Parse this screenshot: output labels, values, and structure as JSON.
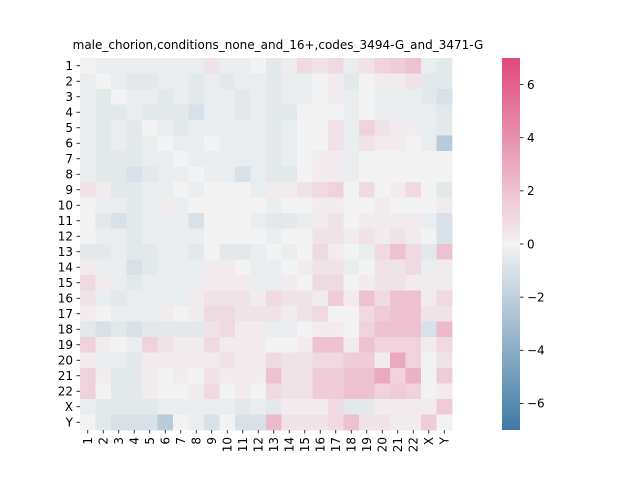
{
  "chart_data": {
    "type": "heatmap",
    "title": "male_chorion,conditions_none_and_16+,codes_3494-G_and_3471-G",
    "xlabel": "",
    "ylabel": "",
    "categories": [
      "1",
      "2",
      "3",
      "4",
      "5",
      "6",
      "7",
      "8",
      "9",
      "10",
      "11",
      "12",
      "13",
      "14",
      "15",
      "16",
      "17",
      "18",
      "19",
      "20",
      "21",
      "22",
      "X",
      "Y"
    ],
    "colorbar": {
      "min": -7,
      "max": 7,
      "ticks": [
        -6,
        -4,
        -2,
        0,
        2,
        4,
        6
      ],
      "tick_labels": [
        "−6",
        "−4",
        "−2",
        "0",
        "2",
        "4",
        "6"
      ],
      "low_color": "#3f7aa5",
      "mid_color": "#f2f2f2",
      "high_color": "#e0487a"
    },
    "values": [
      [
        0.0,
        -0.3,
        -0.3,
        -0.3,
        -0.3,
        -0.3,
        -0.3,
        -0.3,
        0.6,
        -0.3,
        -0.3,
        0.0,
        -0.6,
        0.3,
        1.0,
        0.6,
        1.0,
        -0.3,
        0.6,
        1.3,
        1.6,
        2.0,
        -0.3,
        -0.6
      ],
      [
        -0.3,
        0.0,
        -0.3,
        -0.6,
        -0.6,
        -0.3,
        -0.3,
        -0.6,
        -0.3,
        -0.6,
        -0.3,
        -0.3,
        -0.6,
        -0.3,
        -0.3,
        0.0,
        0.3,
        -0.6,
        0.0,
        0.3,
        0.3,
        0.6,
        -0.6,
        -0.6
      ],
      [
        -0.3,
        -0.6,
        0.0,
        -0.3,
        -0.3,
        -0.6,
        -0.3,
        -0.6,
        -0.3,
        -0.3,
        -0.6,
        -0.3,
        -0.6,
        -0.3,
        -0.3,
        0.0,
        0.3,
        -0.3,
        0.0,
        -0.3,
        -0.3,
        -0.3,
        -0.6,
        -1.0
      ],
      [
        -0.3,
        -0.6,
        -0.6,
        -0.3,
        -0.6,
        -0.6,
        -0.6,
        -1.0,
        -0.3,
        -0.3,
        -0.6,
        -0.3,
        -0.6,
        -0.6,
        0.0,
        0.0,
        0.0,
        -0.3,
        0.0,
        -0.3,
        -0.3,
        -0.3,
        -0.3,
        -0.6
      ],
      [
        -0.3,
        -0.6,
        -0.3,
        -0.6,
        0.0,
        -0.3,
        -0.6,
        -0.3,
        -0.3,
        -0.3,
        -0.3,
        -0.3,
        -0.6,
        -0.3,
        0.0,
        0.0,
        0.6,
        -0.3,
        1.3,
        0.6,
        0.3,
        0.3,
        -0.3,
        -0.6
      ],
      [
        -0.3,
        -0.6,
        -0.3,
        -0.6,
        -0.3,
        0.0,
        -0.3,
        -0.3,
        0.0,
        -0.3,
        -0.3,
        -0.3,
        -0.6,
        -0.3,
        0.0,
        0.0,
        0.6,
        -0.3,
        0.6,
        0.3,
        0.3,
        0.0,
        -0.3,
        -2.3
      ],
      [
        -0.3,
        -0.6,
        -0.6,
        -0.6,
        -0.3,
        -0.3,
        0.0,
        -0.3,
        -0.3,
        -0.3,
        -0.3,
        -0.3,
        -0.6,
        -0.3,
        0.0,
        0.3,
        0.3,
        -0.3,
        0.0,
        0.0,
        0.0,
        0.0,
        0.0,
        0.0
      ],
      [
        -0.3,
        -0.6,
        -0.6,
        -1.0,
        -0.6,
        -0.3,
        -0.3,
        0.0,
        -0.3,
        -0.3,
        -1.0,
        -0.3,
        -0.6,
        -0.6,
        0.0,
        0.3,
        0.3,
        -0.3,
        0.0,
        0.0,
        0.0,
        0.0,
        0.0,
        0.0
      ],
      [
        0.6,
        0.3,
        -0.6,
        -0.6,
        -0.3,
        -0.3,
        0.0,
        -0.3,
        0.0,
        0.0,
        0.0,
        -0.3,
        0.3,
        0.3,
        0.6,
        1.0,
        1.3,
        0.0,
        1.0,
        0.0,
        0.3,
        1.0,
        0.0,
        -0.6
      ],
      [
        0.0,
        -0.3,
        -0.3,
        -0.6,
        -0.3,
        0.3,
        -0.3,
        0.0,
        0.0,
        0.0,
        0.0,
        0.0,
        -0.3,
        0.0,
        0.0,
        0.3,
        0.3,
        0.0,
        0.0,
        0.3,
        0.0,
        0.0,
        0.0,
        0.3
      ],
      [
        0.0,
        -0.6,
        -1.0,
        -0.6,
        -0.3,
        -0.3,
        -0.3,
        -1.0,
        0.0,
        0.0,
        0.0,
        -0.3,
        -0.6,
        -0.6,
        -0.3,
        0.3,
        0.6,
        0.0,
        0.3,
        0.3,
        0.3,
        0.3,
        -0.3,
        -1.0
      ],
      [
        0.0,
        -0.3,
        -0.3,
        -0.6,
        -0.3,
        -0.3,
        -0.3,
        -0.3,
        0.0,
        0.0,
        0.0,
        0.0,
        -0.3,
        0.0,
        0.0,
        0.6,
        0.6,
        0.3,
        0.6,
        0.3,
        0.6,
        0.3,
        0.0,
        -1.0
      ],
      [
        -0.6,
        -0.6,
        -0.3,
        -0.6,
        -0.6,
        -0.3,
        -0.3,
        -0.6,
        0.0,
        -0.6,
        -0.6,
        -0.3,
        0.0,
        -0.3,
        0.0,
        1.0,
        0.3,
        0.0,
        -0.3,
        1.0,
        2.0,
        1.0,
        -0.6,
        2.0
      ],
      [
        0.3,
        -0.3,
        -0.3,
        -1.0,
        -0.6,
        -0.3,
        -0.3,
        -0.3,
        0.3,
        0.3,
        0.0,
        -0.3,
        -0.3,
        0.0,
        0.3,
        0.6,
        0.6,
        -0.3,
        0.0,
        0.6,
        0.6,
        1.0,
        -0.3,
        0.3
      ],
      [
        1.0,
        0.3,
        -0.3,
        -0.6,
        -0.3,
        -0.3,
        -0.3,
        -0.3,
        0.3,
        0.3,
        0.3,
        -0.3,
        -0.3,
        0.3,
        0.0,
        1.0,
        1.0,
        0.0,
        0.3,
        0.6,
        0.6,
        0.3,
        0.3,
        0.3
      ],
      [
        0.6,
        -0.3,
        -0.6,
        -0.3,
        -0.3,
        -0.3,
        -0.3,
        0.3,
        0.6,
        0.6,
        0.6,
        0.3,
        1.0,
        0.6,
        0.6,
        0.3,
        1.6,
        0.3,
        2.0,
        1.0,
        2.0,
        2.0,
        0.3,
        1.0
      ],
      [
        0.3,
        0.0,
        -0.3,
        -0.3,
        -0.3,
        0.3,
        0.0,
        0.3,
        1.0,
        1.0,
        0.6,
        0.6,
        0.6,
        0.3,
        0.6,
        1.0,
        0.0,
        0.0,
        1.0,
        1.6,
        2.0,
        2.0,
        0.6,
        0.6
      ],
      [
        -0.6,
        -1.0,
        -0.6,
        -1.0,
        -0.6,
        -0.6,
        -0.6,
        -0.6,
        0.6,
        1.0,
        0.3,
        0.3,
        -0.3,
        -0.3,
        0.0,
        0.3,
        0.3,
        0.0,
        1.3,
        2.0,
        2.0,
        2.0,
        -1.0,
        2.3
      ],
      [
        1.3,
        0.3,
        0.0,
        -0.3,
        1.3,
        0.6,
        0.3,
        0.3,
        1.0,
        0.3,
        0.3,
        0.3,
        0.0,
        0.0,
        0.3,
        2.0,
        2.0,
        0.3,
        2.0,
        1.3,
        1.3,
        1.3,
        0.3,
        1.0
      ],
      [
        0.3,
        -0.3,
        -0.3,
        -0.6,
        0.3,
        0.3,
        0.3,
        0.3,
        0.3,
        0.6,
        0.3,
        0.3,
        1.0,
        0.6,
        0.6,
        1.0,
        1.0,
        1.6,
        1.6,
        0.3,
        3.0,
        1.3,
        0.0,
        0.6
      ],
      [
        1.3,
        0.3,
        -0.6,
        -0.6,
        0.3,
        0.0,
        0.3,
        0.0,
        0.6,
        0.3,
        0.3,
        0.3,
        2.0,
        0.6,
        0.6,
        1.6,
        1.6,
        2.0,
        2.0,
        3.0,
        1.3,
        2.6,
        0.0,
        1.6
      ],
      [
        1.3,
        0.0,
        -0.6,
        -0.6,
        0.3,
        0.0,
        0.0,
        0.3,
        1.0,
        0.0,
        0.3,
        0.0,
        1.0,
        0.6,
        0.6,
        1.6,
        1.6,
        2.0,
        2.0,
        1.3,
        1.6,
        1.3,
        0.0,
        0.3
      ],
      [
        -0.3,
        -0.6,
        -0.6,
        -0.6,
        -0.6,
        -0.3,
        -0.3,
        -0.3,
        -0.3,
        -0.3,
        -0.6,
        -0.3,
        -0.6,
        0.3,
        0.3,
        0.3,
        1.0,
        -0.6,
        -0.6,
        0.3,
        0.3,
        0.3,
        0.3,
        1.6
      ],
      [
        0.0,
        -0.6,
        -1.0,
        -1.0,
        -1.0,
        -2.3,
        0.0,
        -0.3,
        -1.0,
        0.0,
        -1.0,
        -1.0,
        2.3,
        0.6,
        0.6,
        0.6,
        1.0,
        2.0,
        0.6,
        0.6,
        0.3,
        0.3,
        1.6,
        0.0
      ]
    ]
  }
}
